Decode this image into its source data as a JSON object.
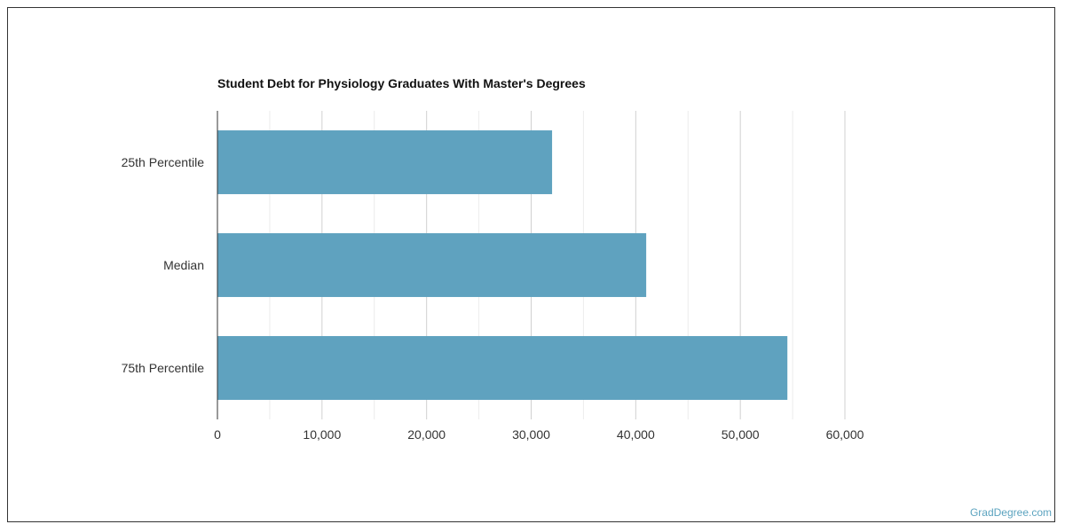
{
  "chart_data": {
    "type": "bar",
    "orientation": "horizontal",
    "title": "Student Debt for Physiology Graduates With Master's Degrees",
    "categories": [
      "25th Percentile",
      "Median",
      "75th Percentile"
    ],
    "values": [
      32000,
      41000,
      54500
    ],
    "xlim": [
      0,
      60000
    ],
    "x_ticks": [
      0,
      10000,
      20000,
      30000,
      40000,
      50000,
      60000
    ],
    "x_tick_labels": [
      "0",
      "10,000",
      "20,000",
      "30,000",
      "40,000",
      "50,000",
      "60,000"
    ],
    "xlabel": "",
    "ylabel": "",
    "grid": true,
    "bar_color": "#5fa2bf"
  },
  "watermark": "GradDegree.com"
}
